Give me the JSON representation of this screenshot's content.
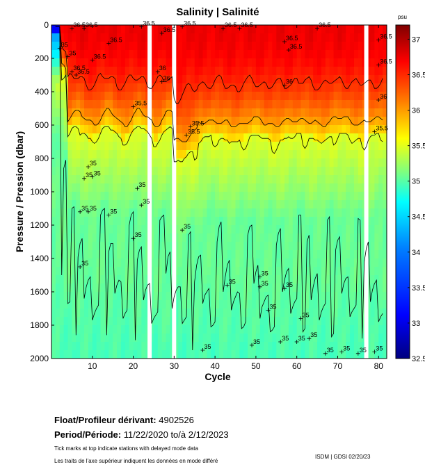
{
  "chart_data": {
    "type": "heatmap",
    "title": "Salinity | Salinité",
    "xlabel": "Cycle",
    "ylabel": "Pressure / Pression (dbar)",
    "xlim": [
      0,
      82
    ],
    "ylim": [
      2000,
      0
    ],
    "x_ticks": [
      10,
      20,
      30,
      40,
      50,
      60,
      70,
      80
    ],
    "y_ticks": [
      0,
      200,
      400,
      600,
      800,
      1000,
      1200,
      1400,
      1600,
      1800,
      2000
    ],
    "colorbar": {
      "unit": "psu",
      "min": 32.5,
      "max": 37.2,
      "ticks": [
        37,
        36.5,
        36,
        35.5,
        35,
        34.5,
        34,
        33.5,
        33,
        32.5
      ],
      "colormap": [
        "#00007f",
        "#0000ff",
        "#007fff",
        "#00ffff",
        "#7fff7f",
        "#ffff00",
        "#ff7f00",
        "#ff0000",
        "#7f0000"
      ]
    },
    "data_gaps_cycles": [
      24,
      30,
      77
    ],
    "contour_levels": [
      35,
      35.5,
      36,
      36.5
    ],
    "contour_labels": [
      {
        "text": "35",
        "cycle": 9,
        "pressure": 850
      },
      {
        "text": "35",
        "cycle": 8,
        "pressure": 920
      },
      {
        "text": "35",
        "cycle": 10,
        "pressure": 910
      },
      {
        "text": "35",
        "cycle": 9,
        "pressure": 1120
      },
      {
        "text": "35",
        "cycle": 7,
        "pressure": 1120
      },
      {
        "text": "35",
        "cycle": 14,
        "pressure": 1140
      },
      {
        "text": "35",
        "cycle": 21,
        "pressure": 980
      },
      {
        "text": "35",
        "cycle": 22,
        "pressure": 1080
      },
      {
        "text": "35",
        "cycle": 20,
        "pressure": 1280
      },
      {
        "text": "35",
        "cycle": 7,
        "pressure": 1450
      },
      {
        "text": "35",
        "cycle": 32,
        "pressure": 1230
      },
      {
        "text": "35",
        "cycle": 43,
        "pressure": 1560
      },
      {
        "text": "35",
        "cycle": 51,
        "pressure": 1510
      },
      {
        "text": "35",
        "cycle": 51,
        "pressure": 1570
      },
      {
        "text": "35",
        "cycle": 57,
        "pressure": 1580
      },
      {
        "text": "35",
        "cycle": 53,
        "pressure": 1710
      },
      {
        "text": "35",
        "cycle": 61,
        "pressure": 1760
      },
      {
        "text": "35",
        "cycle": 56,
        "pressure": 1900
      },
      {
        "text": "35",
        "cycle": 60,
        "pressure": 1900
      },
      {
        "text": "35",
        "cycle": 63,
        "pressure": 1880
      },
      {
        "text": "35",
        "cycle": 49,
        "pressure": 1920
      },
      {
        "text": "35",
        "cycle": 37,
        "pressure": 1950
      },
      {
        "text": "35",
        "cycle": 67,
        "pressure": 1970
      },
      {
        "text": "35",
        "cycle": 71,
        "pressure": 1960
      },
      {
        "text": "35",
        "cycle": 75,
        "pressure": 1970
      },
      {
        "text": "35",
        "cycle": 79,
        "pressure": 1960
      },
      {
        "text": "35.5",
        "cycle": 20,
        "pressure": 490
      },
      {
        "text": "35.5",
        "cycle": 34,
        "pressure": 610
      },
      {
        "text": "35.5",
        "cycle": 33,
        "pressure": 660
      },
      {
        "text": "35.5",
        "cycle": 79,
        "pressure": 640
      },
      {
        "text": "36",
        "cycle": 26,
        "pressure": 280
      },
      {
        "text": "36",
        "cycle": 27,
        "pressure": 340
      },
      {
        "text": "36",
        "cycle": 57,
        "pressure": 360
      },
      {
        "text": "36",
        "cycle": 80,
        "pressure": 450
      },
      {
        "text": "36.5",
        "cycle": 5,
        "pressure": 20
      },
      {
        "text": "36.5",
        "cycle": 8,
        "pressure": 20
      },
      {
        "text": "36.5",
        "cycle": 10,
        "pressure": 210
      },
      {
        "text": "36.5",
        "cycle": 5,
        "pressure": 280
      },
      {
        "text": "36.5",
        "cycle": 6,
        "pressure": 300
      },
      {
        "text": "36.5",
        "cycle": 14,
        "pressure": 110
      },
      {
        "text": "36.5",
        "cycle": 22,
        "pressure": 10
      },
      {
        "text": "36.5",
        "cycle": 27,
        "pressure": 50
      },
      {
        "text": "36.5",
        "cycle": 32,
        "pressure": 10
      },
      {
        "text": "36.5",
        "cycle": 42,
        "pressure": 20
      },
      {
        "text": "36.5",
        "cycle": 46,
        "pressure": 20
      },
      {
        "text": "36.5",
        "cycle": 57,
        "pressure": 100
      },
      {
        "text": "36.5",
        "cycle": 58,
        "pressure": 150
      },
      {
        "text": "36.5",
        "cycle": 65,
        "pressure": 20
      },
      {
        "text": "36.5",
        "cycle": 80,
        "pressure": 90
      },
      {
        "text": "36.5",
        "cycle": 80,
        "pressure": 240
      },
      {
        "text": "35",
        "cycle": 2,
        "pressure": 140
      },
      {
        "text": "35",
        "cycle": 4,
        "pressure": 190
      }
    ]
  },
  "float_info": {
    "label": "Float/Profileur dérivant:",
    "value": "4902526"
  },
  "period_info": {
    "label": "Period/Période:",
    "start": "11/22/2020",
    "separator": "to/à",
    "end": "2/12/2023"
  },
  "notes": {
    "english": "Tick marks at top indicate stations with delayed mode data",
    "french": "Les traits de l'axe supérieur indiquent les données en mode différé"
  },
  "stamp": "ISDM | GDSI 02/20/23"
}
